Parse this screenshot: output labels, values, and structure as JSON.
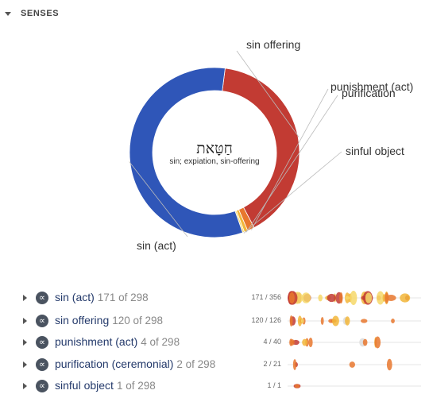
{
  "section": {
    "title": "SENSES"
  },
  "center": {
    "word": "חַטָּאת",
    "gloss": "sin; expiation, sin-offering"
  },
  "chart_data": {
    "type": "pie",
    "donut": true,
    "total": 298,
    "slices": [
      {
        "label": "sin (act)",
        "value": 171,
        "color": "#2f56b8"
      },
      {
        "label": "sin offering",
        "value": 120,
        "color": "#c23b33"
      },
      {
        "label": "punishment (act)",
        "value": 4,
        "color": "#e8772e"
      },
      {
        "label": "purification",
        "value": 2,
        "color": "#f2b63a"
      },
      {
        "label": "sinful object",
        "value": 1,
        "color": "#f6d86a"
      }
    ]
  },
  "senses": [
    {
      "name": "sin (act)",
      "count": "171 of 298",
      "ratio": "171 / 356",
      "spark_color": "#e8772e"
    },
    {
      "name": "sin offering",
      "count": "120 of 298",
      "ratio": "120 / 126",
      "spark_color": "#c23b33"
    },
    {
      "name": "punishment (act)",
      "count": "4 of 298",
      "ratio": "4 / 40",
      "spark_color": "#c23b33"
    },
    {
      "name": "purification (ceremonial)",
      "count": "2 of 298",
      "ratio": "2 / 21",
      "spark_color": "#c23b33"
    },
    {
      "name": "sinful object",
      "count": "1 of 298",
      "ratio": "1 / 1",
      "spark_color": "#c23b33"
    }
  ],
  "icons": {
    "caret": "caret-down-icon",
    "row_caret": "caret-right-icon",
    "link": "infinity-link-icon"
  }
}
